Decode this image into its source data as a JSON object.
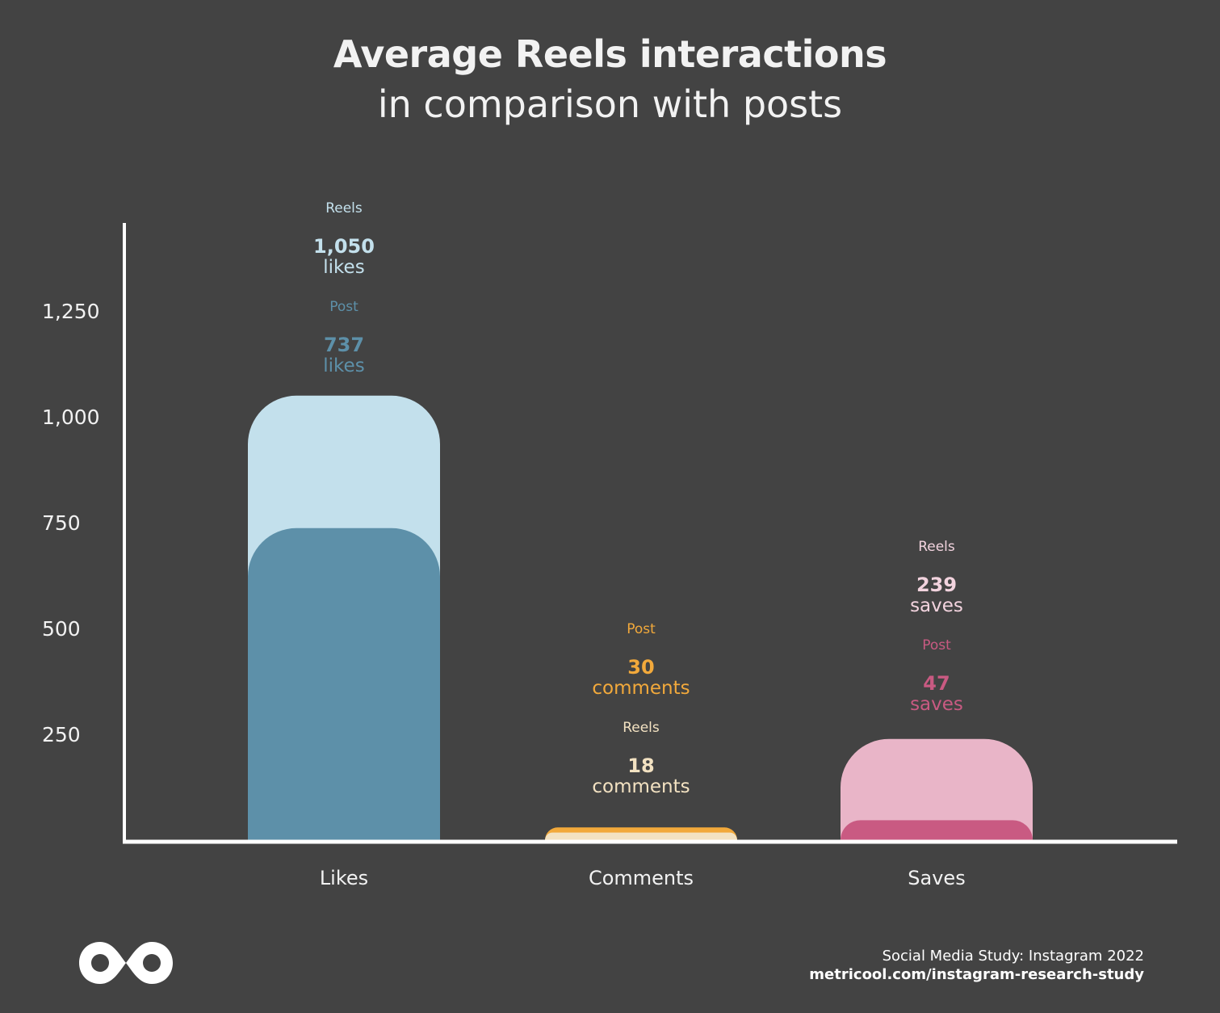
{
  "title": "Average Reels interactions",
  "subtitle": "in comparison with posts",
  "footer": {
    "study": "Social Media Study: Instagram 2022",
    "url": "metricool.com/instagram-research-study"
  },
  "logo": {
    "icon": "metricool-infinity-logo-icon"
  },
  "colors": {
    "background": "#434343",
    "axis": "#ffffff",
    "likes_reels": "#c3e0ec",
    "likes_post": "#5d90a9",
    "comments_post": "#f2a93b",
    "comments_reels": "#f3e2c2",
    "saves_reels": "#e9b5c8",
    "saves_post": "#c95a82"
  },
  "chart_data": {
    "type": "bar",
    "categories": [
      "Likes",
      "Comments",
      "Saves"
    ],
    "y_ticks": [
      "250",
      "500",
      "750",
      "1,000",
      "1,250"
    ],
    "ylim": [
      0,
      1500
    ],
    "grid": false,
    "series": [
      {
        "name": "Reels",
        "values": [
          1050,
          18,
          239
        ]
      },
      {
        "name": "Post",
        "values": [
          737,
          30,
          47
        ]
      }
    ],
    "labels": [
      [
        {
          "series": "Reels",
          "value": "1,050",
          "unit": "likes",
          "color": "#c3e0ec"
        },
        {
          "series": "Post",
          "value": "737",
          "unit": "likes",
          "color": "#5d90a9"
        }
      ],
      [
        {
          "series": "Post",
          "value": "30",
          "unit": "comments",
          "color": "#f2a93b"
        },
        {
          "series": "Reels",
          "value": "18",
          "unit": "comments",
          "color": "#f3e2c2"
        }
      ],
      [
        {
          "series": "Reels",
          "value": "239",
          "unit": "saves",
          "color": "#f2d3de"
        },
        {
          "series": "Post",
          "value": "47",
          "unit": "saves",
          "color": "#c95a82"
        }
      ]
    ]
  }
}
